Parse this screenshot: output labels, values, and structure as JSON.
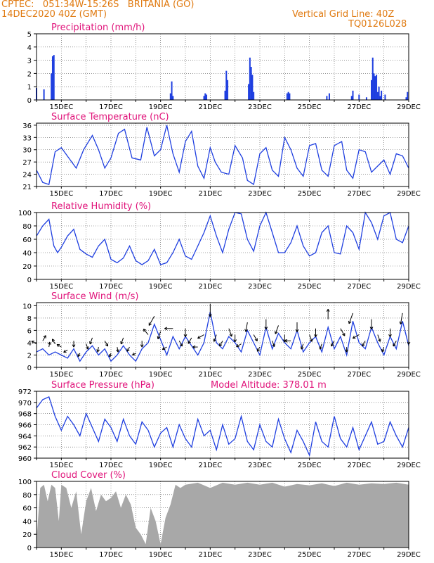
{
  "header": {
    "left_line1": "CPTEC:   051:34W-15:26S   BRITANIA (GO)",
    "left_line2": "14DEC2020 40Z (GMT)",
    "right_line1": "Vertical Grid Line: 40Z",
    "right_line2": "TQ0126L028"
  },
  "colors": {
    "header": "#e07a10",
    "title": "#e0137a",
    "series": "#1f3fe0",
    "cloud": "#a8a8a8"
  },
  "x_ticks": [
    "15DEC",
    "17DEC",
    "19DEC",
    "21DEC",
    "23DEC",
    "25DEC",
    "27DEC",
    "29DEC"
  ],
  "chart_data": [
    {
      "id": "precip",
      "type": "bar",
      "title": "Precipitation (mm/h)",
      "ylim": [
        0,
        5
      ],
      "yticks": [
        0,
        1,
        2,
        3,
        4,
        5
      ],
      "x": [
        14.0,
        14.3,
        14.6,
        14.65,
        14.7,
        19.4,
        19.45,
        19.5,
        20.75,
        20.8,
        20.85,
        21.6,
        21.65,
        21.7,
        22.55,
        22.6,
        22.65,
        22.7,
        22.75,
        24.1,
        24.15,
        24.2,
        25.7,
        25.8,
        26.7,
        26.75,
        27.0,
        27.3,
        27.5,
        27.55,
        27.6,
        27.65,
        27.7,
        27.75,
        27.8,
        27.85,
        27.9,
        28.05,
        28.9,
        28.95
      ],
      "values": [
        0.9,
        0.8,
        2.0,
        3.3,
        3.4,
        0.5,
        1.4,
        0.3,
        0.3,
        0.5,
        0.4,
        0.7,
        2.2,
        1.5,
        1.2,
        3.2,
        2.5,
        1.9,
        0.6,
        0.5,
        0.6,
        0.5,
        0.3,
        0.5,
        0.3,
        0.7,
        0.4,
        0.2,
        1.5,
        3.2,
        2.0,
        1.8,
        1.9,
        0.6,
        1.0,
        0.3,
        0.7,
        0.4,
        0.2,
        0.6
      ]
    },
    {
      "id": "temp",
      "type": "line",
      "title": "Surface Temperature (nC)",
      "ylim": [
        21,
        36.5
      ],
      "yticks": [
        21,
        24,
        27,
        30,
        33,
        36
      ],
      "x": [
        14.0,
        14.25,
        14.5,
        14.75,
        15.0,
        15.3,
        15.6,
        15.9,
        16.25,
        16.5,
        16.75,
        17.0,
        17.3,
        17.55,
        17.85,
        18.2,
        18.45,
        18.75,
        19.0,
        19.25,
        19.5,
        19.75,
        20.0,
        20.25,
        20.5,
        20.75,
        21.0,
        21.2,
        21.45,
        21.75,
        22.0,
        22.3,
        22.5,
        22.75,
        23.0,
        23.25,
        23.5,
        23.75,
        24.0,
        24.25,
        24.5,
        24.75,
        25.0,
        25.25,
        25.5,
        25.75,
        26.0,
        26.3,
        26.5,
        26.75,
        27.0,
        27.25,
        27.5,
        27.75,
        28.0,
        28.25,
        28.5,
        28.75,
        29.0
      ],
      "values": [
        25.0,
        22.0,
        21.5,
        29.5,
        30.5,
        28.0,
        25.5,
        30.0,
        33.5,
        30.0,
        25.5,
        28.0,
        34.0,
        35.0,
        28.0,
        27.5,
        35.5,
        28.5,
        30.0,
        36.0,
        29.0,
        24.5,
        32.0,
        34.5,
        26.0,
        23.0,
        30.5,
        27.0,
        24.5,
        24.0,
        31.0,
        28.0,
        22.5,
        21.5,
        29.0,
        30.5,
        25.0,
        23.5,
        33.0,
        30.0,
        25.5,
        23.5,
        31.0,
        31.5,
        25.0,
        23.5,
        31.0,
        32.0,
        25.0,
        23.0,
        30.0,
        29.5,
        24.5,
        26.0,
        27.5,
        24.0,
        29.0,
        28.5,
        25.5
      ]
    },
    {
      "id": "rh",
      "type": "line",
      "title": "Relative Humidity (%)",
      "ylim": [
        0,
        100
      ],
      "yticks": [
        0,
        20,
        40,
        60,
        80,
        100
      ],
      "x": [
        14.0,
        14.25,
        14.5,
        14.7,
        14.85,
        15.0,
        15.25,
        15.5,
        15.75,
        16.0,
        16.25,
        16.5,
        16.75,
        17.0,
        17.25,
        17.5,
        17.75,
        18.0,
        18.25,
        18.5,
        18.75,
        19.0,
        19.25,
        19.5,
        19.75,
        20.0,
        20.25,
        20.5,
        20.75,
        21.0,
        21.25,
        21.5,
        21.75,
        22.0,
        22.25,
        22.5,
        22.75,
        23.0,
        23.25,
        23.5,
        23.75,
        24.0,
        24.25,
        24.5,
        24.75,
        25.0,
        25.25,
        25.5,
        25.75,
        26.0,
        26.25,
        26.5,
        26.75,
        27.0,
        27.25,
        27.5,
        27.75,
        28.0,
        28.25,
        28.5,
        28.75,
        29.0
      ],
      "values": [
        65,
        80,
        90,
        50,
        40,
        48,
        65,
        75,
        45,
        38,
        33,
        50,
        60,
        30,
        25,
        32,
        50,
        28,
        22,
        28,
        45,
        22,
        25,
        40,
        60,
        35,
        30,
        50,
        70,
        95,
        65,
        40,
        75,
        100,
        98,
        60,
        42,
        80,
        100,
        70,
        40,
        40,
        55,
        80,
        50,
        35,
        40,
        70,
        80,
        40,
        38,
        80,
        70,
        45,
        100,
        85,
        60,
        95,
        100,
        60,
        55,
        80
      ]
    },
    {
      "id": "wind",
      "type": "line",
      "title": "Surface Wind (m/s)",
      "ylim": [
        0,
        10.5
      ],
      "yticks": [
        0,
        2,
        4,
        6,
        8,
        10
      ],
      "x": [
        14.0,
        14.25,
        14.5,
        14.75,
        15.0,
        15.25,
        15.5,
        15.75,
        16.0,
        16.25,
        16.5,
        16.75,
        17.0,
        17.25,
        17.5,
        17.75,
        18.0,
        18.25,
        18.5,
        18.75,
        19.0,
        19.25,
        19.5,
        19.75,
        20.0,
        20.25,
        20.5,
        20.75,
        21.0,
        21.25,
        21.5,
        21.75,
        22.0,
        22.25,
        22.5,
        22.75,
        23.0,
        23.25,
        23.5,
        23.75,
        24.0,
        24.25,
        24.5,
        24.75,
        25.0,
        25.25,
        25.5,
        25.75,
        26.0,
        26.25,
        26.5,
        26.75,
        27.0,
        27.25,
        27.5,
        27.75,
        28.0,
        28.25,
        28.5,
        28.75,
        29.0
      ],
      "values": [
        2.5,
        3.0,
        2.0,
        2.5,
        2.0,
        1.5,
        3.0,
        1.0,
        2.5,
        3.5,
        2.0,
        3.0,
        1.0,
        2.0,
        3.5,
        2.0,
        1.0,
        3.0,
        4.0,
        7.0,
        4.5,
        2.0,
        5.0,
        3.0,
        5.0,
        3.5,
        2.0,
        4.0,
        9.0,
        4.0,
        3.0,
        5.0,
        4.0,
        2.5,
        6.0,
        4.0,
        2.0,
        6.5,
        3.0,
        5.5,
        4.0,
        3.0,
        6.0,
        2.5,
        4.0,
        5.0,
        2.5,
        6.5,
        3.0,
        5.0,
        2.0,
        7.5,
        4.0,
        3.0,
        6.5,
        4.0,
        2.0,
        5.0,
        3.0,
        7.5,
        3.5
      ],
      "wind_dir_deg": [
        300,
        30,
        10,
        330,
        300,
        240,
        180,
        210,
        160,
        200,
        190,
        150,
        200,
        170,
        200,
        210,
        240,
        180,
        320,
        210,
        200,
        240,
        270,
        150,
        180,
        210,
        270,
        240,
        180,
        200,
        210,
        160,
        180,
        240,
        190,
        150,
        210,
        180,
        160,
        200,
        180,
        270,
        180,
        200,
        160,
        180,
        200,
        0,
        210,
        150,
        180,
        200,
        240,
        210,
        180,
        160,
        200,
        180,
        210,
        190,
        180
      ]
    },
    {
      "id": "pressure",
      "type": "line",
      "title": "Surface Pressure (hPa)",
      "annotation": "Model Altitude: 378.01 m",
      "ylim": [
        960,
        972
      ],
      "yticks": [
        960,
        962,
        964,
        966,
        968,
        970,
        972
      ],
      "x": [
        14.0,
        14.25,
        14.5,
        14.75,
        15.0,
        15.25,
        15.5,
        15.75,
        16.0,
        16.25,
        16.5,
        16.75,
        17.0,
        17.25,
        17.5,
        17.75,
        18.0,
        18.25,
        18.5,
        18.75,
        19.0,
        19.25,
        19.5,
        19.75,
        20.0,
        20.25,
        20.5,
        20.75,
        21.0,
        21.25,
        21.5,
        21.75,
        22.0,
        22.25,
        22.5,
        22.75,
        23.0,
        23.25,
        23.5,
        23.75,
        24.0,
        24.25,
        24.5,
        24.75,
        25.0,
        25.25,
        25.5,
        25.75,
        26.0,
        26.25,
        26.5,
        26.75,
        27.0,
        27.25,
        27.5,
        27.75,
        28.0,
        28.25,
        28.5,
        28.75,
        29.0
      ],
      "values": [
        969.0,
        970.5,
        971.0,
        967.5,
        965.0,
        967.5,
        966.0,
        964.0,
        968.0,
        965.5,
        963.0,
        967.0,
        965.5,
        963.0,
        967.0,
        964.0,
        962.5,
        966.5,
        965.0,
        962.0,
        964.5,
        965.5,
        962.0,
        966.0,
        963.5,
        962.0,
        967.0,
        964.0,
        965.0,
        961.5,
        966.0,
        962.5,
        963.5,
        967.5,
        963.0,
        961.5,
        966.0,
        963.0,
        962.0,
        967.0,
        963.5,
        961.0,
        965.0,
        963.0,
        960.5,
        966.5,
        963.0,
        962.0,
        967.5,
        963.5,
        962.0,
        965.5,
        961.5,
        964.0,
        966.5,
        962.5,
        963.0,
        966.5,
        964.0,
        962.0,
        965.5
      ]
    },
    {
      "id": "cloud",
      "type": "area",
      "title": "Cloud Cover (%)",
      "ylim": [
        0,
        100
      ],
      "yticks": [
        0,
        20,
        40,
        60,
        80,
        100
      ],
      "x": [
        14.0,
        14.15,
        14.3,
        14.45,
        14.6,
        14.75,
        14.9,
        15.0,
        15.2,
        15.4,
        15.6,
        15.8,
        16.0,
        16.2,
        16.4,
        16.6,
        16.8,
        17.0,
        17.2,
        17.4,
        17.6,
        17.8,
        18.0,
        18.2,
        18.4,
        18.6,
        18.8,
        19.0,
        19.2,
        19.4,
        19.6,
        19.8,
        20.0,
        20.5,
        21.0,
        21.5,
        22.0,
        22.5,
        23.0,
        23.5,
        24.0,
        24.5,
        25.0,
        25.5,
        26.0,
        26.5,
        27.0,
        27.5,
        28.0,
        28.5,
        29.0
      ],
      "values": [
        10,
        90,
        95,
        70,
        95,
        90,
        40,
        95,
        90,
        60,
        85,
        20,
        70,
        90,
        55,
        80,
        70,
        75,
        85,
        60,
        80,
        65,
        30,
        20,
        5,
        60,
        40,
        5,
        45,
        65,
        95,
        90,
        95,
        98,
        90,
        98,
        95,
        98,
        95,
        98,
        92,
        96,
        94,
        97,
        93,
        98,
        95,
        97,
        96,
        98,
        95
      ]
    }
  ]
}
